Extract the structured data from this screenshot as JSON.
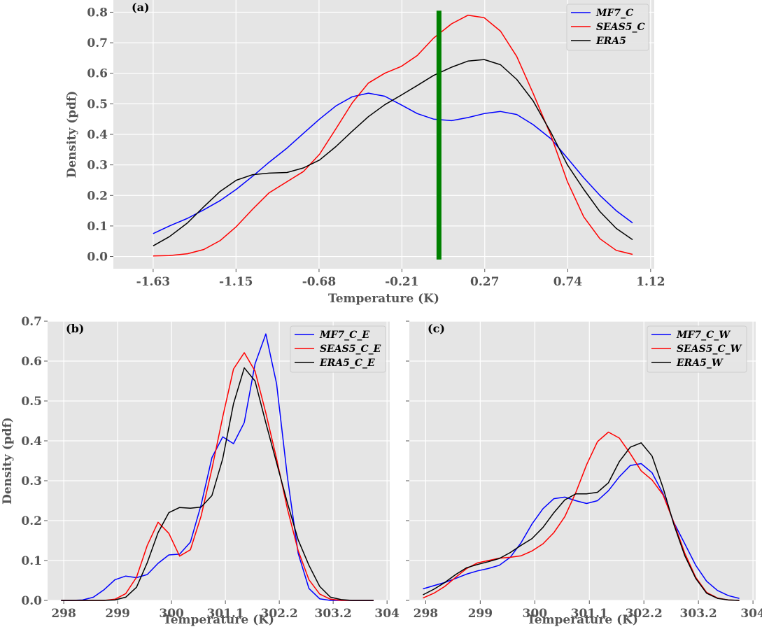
{
  "chart_data": [
    {
      "id": "a",
      "type": "line",
      "panel_label": "(a)",
      "title": "",
      "xlabel": "Temperature (K)",
      "ylabel": "Density (pdf)",
      "xlim": [
        -1.85,
        1.14
      ],
      "ylim": [
        -0.04,
        0.84
      ],
      "x_tick_values": [
        -1.63,
        -1.172,
        -0.713,
        -0.255,
        0.203,
        0.662,
        1.12
      ],
      "x_tick_labels": [
        "-1.63",
        "-1.15",
        "-0.68",
        "-0.21",
        "0.27",
        "0.74",
        "1.12"
      ],
      "y_ticks": [
        0.0,
        0.1,
        0.2,
        0.3,
        0.4,
        0.5,
        0.6,
        0.7,
        0.8
      ],
      "y_tick_labels": [
        "0.0",
        "0.1",
        "0.2",
        "0.3",
        "0.4",
        "0.5",
        "0.6",
        "0.7",
        "0.8"
      ],
      "grid": true,
      "legend_position": "top-right",
      "vline": {
        "x": -0.05,
        "ymin": -0.01,
        "ymax": 0.805,
        "color": "#008000"
      },
      "x": [
        -1.63,
        -1.54,
        -1.44,
        -1.35,
        -1.26,
        -1.17,
        -1.08,
        -0.99,
        -0.89,
        -0.8,
        -0.71,
        -0.62,
        -0.53,
        -0.44,
        -0.35,
        -0.26,
        -0.17,
        -0.08,
        0.02,
        0.11,
        0.2,
        0.29,
        0.38,
        0.47,
        0.57,
        0.66,
        0.75,
        0.84,
        0.93,
        1.02
      ],
      "series": [
        {
          "name": "MF7_C",
          "color": "#0000ff",
          "values": [
            0.075,
            0.1,
            0.125,
            0.153,
            0.183,
            0.22,
            0.263,
            0.308,
            0.355,
            0.403,
            0.45,
            0.493,
            0.523,
            0.535,
            0.525,
            0.497,
            0.468,
            0.45,
            0.445,
            0.455,
            0.468,
            0.475,
            0.465,
            0.432,
            0.385,
            0.322,
            0.258,
            0.2,
            0.15,
            0.11
          ]
        },
        {
          "name": "SEAS5_C",
          "color": "#ff0000",
          "values": [
            0.002,
            0.003,
            0.009,
            0.023,
            0.052,
            0.098,
            0.155,
            0.208,
            0.245,
            0.278,
            0.335,
            0.418,
            0.503,
            0.568,
            0.6,
            0.622,
            0.658,
            0.715,
            0.762,
            0.79,
            0.782,
            0.738,
            0.655,
            0.535,
            0.395,
            0.245,
            0.13,
            0.058,
            0.02,
            0.007
          ]
        },
        {
          "name": "ERA5",
          "color": "#000000",
          "values": [
            0.035,
            0.065,
            0.11,
            0.163,
            0.213,
            0.25,
            0.268,
            0.273,
            0.275,
            0.29,
            0.316,
            0.36,
            0.41,
            0.458,
            0.497,
            0.528,
            0.56,
            0.593,
            0.62,
            0.64,
            0.645,
            0.628,
            0.58,
            0.51,
            0.405,
            0.3,
            0.22,
            0.147,
            0.092,
            0.055
          ]
        }
      ]
    },
    {
      "id": "b",
      "type": "line",
      "panel_label": "(b)",
      "title": "",
      "xlabel": "Temperature (K)",
      "ylabel": "Density (pdf)",
      "xlim": [
        -0.3,
        6.05
      ],
      "ylim": [
        0.0,
        0.7
      ],
      "x_tick_values": [
        0,
        1,
        2,
        3,
        4,
        5,
        6
      ],
      "x_tick_labels": [
        "298",
        "299",
        "300",
        "301.1",
        "302.2",
        "303.2",
        "304"
      ],
      "x_note": "x values are positions on the evenly spaced tick scale (0 = 298 ... 6 = 304)",
      "y_ticks": [
        0.0,
        0.1,
        0.2,
        0.3,
        0.4,
        0.5,
        0.6,
        0.7
      ],
      "y_tick_labels": [
        "0.0",
        "0.1",
        "0.2",
        "0.3",
        "0.4",
        "0.5",
        "0.6",
        "0.7"
      ],
      "grid": true,
      "legend_position": "top-right",
      "x": [
        -0.05,
        0.15,
        0.35,
        0.55,
        0.75,
        0.95,
        1.15,
        1.35,
        1.55,
        1.75,
        1.95,
        2.15,
        2.35,
        2.55,
        2.75,
        2.95,
        3.15,
        3.35,
        3.55,
        3.75,
        3.95,
        4.15,
        4.35,
        4.55,
        4.75,
        4.95,
        5.15,
        5.35,
        5.55,
        5.75
      ],
      "series": [
        {
          "name": "MF7_C_E",
          "color": "#0000ff",
          "values": [
            0.0,
            0.0,
            0.001,
            0.008,
            0.027,
            0.052,
            0.061,
            0.057,
            0.065,
            0.093,
            0.114,
            0.116,
            0.146,
            0.24,
            0.358,
            0.41,
            0.393,
            0.446,
            0.593,
            0.668,
            0.543,
            0.31,
            0.118,
            0.03,
            0.004,
            0.0,
            0.0,
            0.0,
            0.0,
            0.0
          ]
        },
        {
          "name": "SEAS5_C_E",
          "color": "#ff0000",
          "values": [
            0.0,
            0.0,
            0.0,
            0.0,
            0.0,
            0.003,
            0.017,
            0.058,
            0.138,
            0.196,
            0.168,
            0.111,
            0.127,
            0.212,
            0.33,
            0.46,
            0.58,
            0.621,
            0.575,
            0.47,
            0.355,
            0.23,
            0.125,
            0.052,
            0.016,
            0.003,
            0.0,
            0.0,
            0.0,
            0.0
          ]
        },
        {
          "name": "ERA5_C_E",
          "color": "#000000",
          "values": [
            0.0,
            0.0,
            0.0,
            0.0,
            0.0,
            0.001,
            0.008,
            0.033,
            0.095,
            0.17,
            0.22,
            0.233,
            0.231,
            0.234,
            0.263,
            0.355,
            0.493,
            0.583,
            0.55,
            0.445,
            0.345,
            0.245,
            0.152,
            0.088,
            0.035,
            0.008,
            0.002,
            0.0,
            0.0,
            0.0
          ]
        }
      ]
    },
    {
      "id": "c",
      "type": "line",
      "panel_label": "(c)",
      "title": "",
      "xlabel": "Temperature (K)",
      "ylabel": "",
      "xlim": [
        -0.3,
        6.05
      ],
      "ylim": [
        0.0,
        0.7
      ],
      "x_tick_values": [
        0,
        1,
        2,
        3,
        4,
        5,
        6
      ],
      "x_tick_labels": [
        "298",
        "299",
        "300",
        "301.1",
        "302.2",
        "303.2",
        "304"
      ],
      "x_note": "x values are positions on the evenly spaced tick scale (0 = 298 ... 6 = 304)",
      "y_ticks": [
        0.0,
        0.1,
        0.2,
        0.3,
        0.4,
        0.5,
        0.6,
        0.7
      ],
      "y_tick_labels": [],
      "grid": true,
      "legend_position": "top-right",
      "x": [
        -0.05,
        0.15,
        0.35,
        0.55,
        0.75,
        0.95,
        1.15,
        1.35,
        1.55,
        1.75,
        1.95,
        2.15,
        2.35,
        2.55,
        2.75,
        2.95,
        3.15,
        3.35,
        3.55,
        3.75,
        3.95,
        4.15,
        4.35,
        4.55,
        4.75,
        4.95,
        5.15,
        5.35,
        5.55,
        5.75
      ],
      "series": [
        {
          "name": "MF7_C_W",
          "color": "#0000ff",
          "values": [
            0.029,
            0.037,
            0.045,
            0.055,
            0.066,
            0.074,
            0.08,
            0.088,
            0.108,
            0.145,
            0.192,
            0.23,
            0.255,
            0.259,
            0.25,
            0.243,
            0.25,
            0.275,
            0.31,
            0.338,
            0.343,
            0.32,
            0.268,
            0.195,
            0.142,
            0.088,
            0.048,
            0.025,
            0.012,
            0.005
          ]
        },
        {
          "name": "SEAS5_C_W",
          "color": "#ff0000",
          "values": [
            0.006,
            0.018,
            0.035,
            0.058,
            0.08,
            0.094,
            0.1,
            0.106,
            0.108,
            0.112,
            0.124,
            0.142,
            0.17,
            0.21,
            0.27,
            0.34,
            0.398,
            0.422,
            0.407,
            0.368,
            0.325,
            0.302,
            0.265,
            0.195,
            0.118,
            0.058,
            0.02,
            0.006,
            0.001,
            0.0
          ]
        },
        {
          "name": "ERA5_W",
          "color": "#000000",
          "values": [
            0.014,
            0.028,
            0.045,
            0.065,
            0.082,
            0.09,
            0.097,
            0.105,
            0.12,
            0.138,
            0.155,
            0.183,
            0.22,
            0.252,
            0.267,
            0.267,
            0.271,
            0.295,
            0.348,
            0.384,
            0.395,
            0.362,
            0.283,
            0.19,
            0.112,
            0.055,
            0.018,
            0.005,
            0.001,
            0.0
          ]
        }
      ]
    }
  ]
}
